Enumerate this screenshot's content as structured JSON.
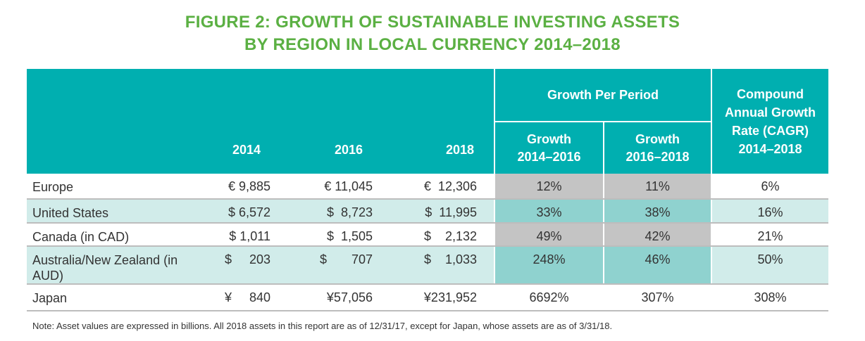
{
  "title_line1": "FIGURE 2: GROWTH OF SUSTAINABLE INVESTING ASSETS",
  "title_line2": "BY REGION IN LOCAL CURRENCY 2014–2018",
  "headers": {
    "y2014": "2014",
    "y2016": "2016",
    "y2018": "2018",
    "growth_group": "Growth Per Period",
    "g1": "Growth\n2014–2016",
    "g2": "Growth\n2016–2018",
    "cagr": "Compound Annual Growth Rate (CAGR) 2014–2018"
  },
  "rows": [
    {
      "region": "Europe",
      "v2014": "€ 9,885",
      "v2016": "€ 11,045",
      "v2018": "€  12,306",
      "g1": "12%",
      "g2": "11%",
      "cagr": "6%"
    },
    {
      "region": "United States",
      "v2014": "$ 6,572",
      "v2016": "$  8,723",
      "v2018": "$  11,995",
      "g1": "33%",
      "g2": "38%",
      "cagr": "16%"
    },
    {
      "region": "Canada (in CAD)",
      "v2014": "$ 1,011",
      "v2016": "$  1,505",
      "v2018": "$    2,132",
      "g1": "49%",
      "g2": "42%",
      "cagr": "21%"
    },
    {
      "region": "Australia/New Zealand (in AUD)",
      "v2014": "$     203",
      "v2016": "$       707",
      "v2018": "$    1,033",
      "g1": "248%",
      "g2": "46%",
      "cagr": "50%"
    },
    {
      "region": "Japan",
      "v2014": "¥     840",
      "v2016": "¥57,056",
      "v2018": "¥231,952",
      "g1": "6692%",
      "g2": "307%",
      "cagr": "308%"
    }
  ],
  "note": "Note: Asset values are expressed in billions. All 2018 assets in this report are as of 12/31/17, except for Japan, whose assets are as of 3/31/18.",
  "colors": {
    "title": "#5bb043",
    "header": "#00afb0",
    "alt_row": "#d1ecea",
    "grey_cell": "#c4c4c4",
    "teal_cell": "#8fd2cf"
  }
}
